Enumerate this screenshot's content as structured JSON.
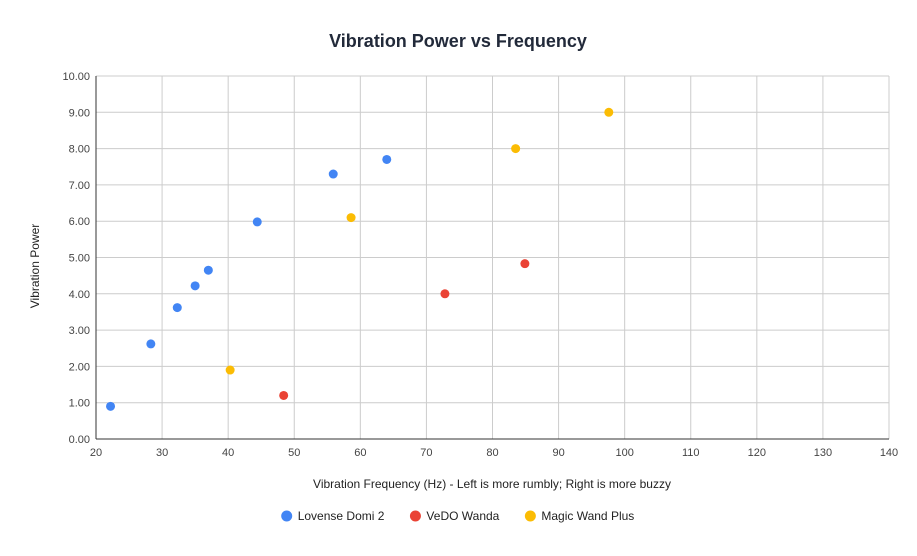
{
  "chart_data": {
    "type": "scatter",
    "title": "Vibration Power vs Frequency",
    "xlabel": "Vibration Frequency (Hz) - Left is more rumbly; Right is more buzzy",
    "ylabel": "Vibration Power",
    "xlim": [
      20,
      140
    ],
    "ylim": [
      0,
      10
    ],
    "x_ticks": [
      "20",
      "30",
      "40",
      "50",
      "60",
      "70",
      "80",
      "90",
      "100",
      "110",
      "120",
      "130",
      "140"
    ],
    "y_ticks": [
      "0.00",
      "1.00",
      "2.00",
      "3.00",
      "4.00",
      "5.00",
      "6.00",
      "7.00",
      "8.00",
      "9.00",
      "10.00"
    ],
    "grid": true,
    "legend_position": "bottom",
    "series": [
      {
        "name": "Lovense Domi 2",
        "color": "#4285f4",
        "points": [
          {
            "x": 22.2,
            "y": 0.9
          },
          {
            "x": 28.3,
            "y": 2.62
          },
          {
            "x": 32.3,
            "y": 3.62
          },
          {
            "x": 35.0,
            "y": 4.22
          },
          {
            "x": 37.0,
            "y": 4.65
          },
          {
            "x": 44.4,
            "y": 5.98
          },
          {
            "x": 55.9,
            "y": 7.3
          },
          {
            "x": 64.0,
            "y": 7.7
          }
        ]
      },
      {
        "name": "VeDO Wanda",
        "color": "#ea4335",
        "points": [
          {
            "x": 48.4,
            "y": 1.2
          },
          {
            "x": 72.8,
            "y": 4.0
          },
          {
            "x": 84.9,
            "y": 4.83
          }
        ]
      },
      {
        "name": "Magic Wand Plus",
        "color": "#fbbc04",
        "points": [
          {
            "x": 40.3,
            "y": 1.9
          },
          {
            "x": 58.6,
            "y": 6.1
          },
          {
            "x": 83.5,
            "y": 8.0
          },
          {
            "x": 97.6,
            "y": 9.0
          }
        ]
      }
    ]
  }
}
